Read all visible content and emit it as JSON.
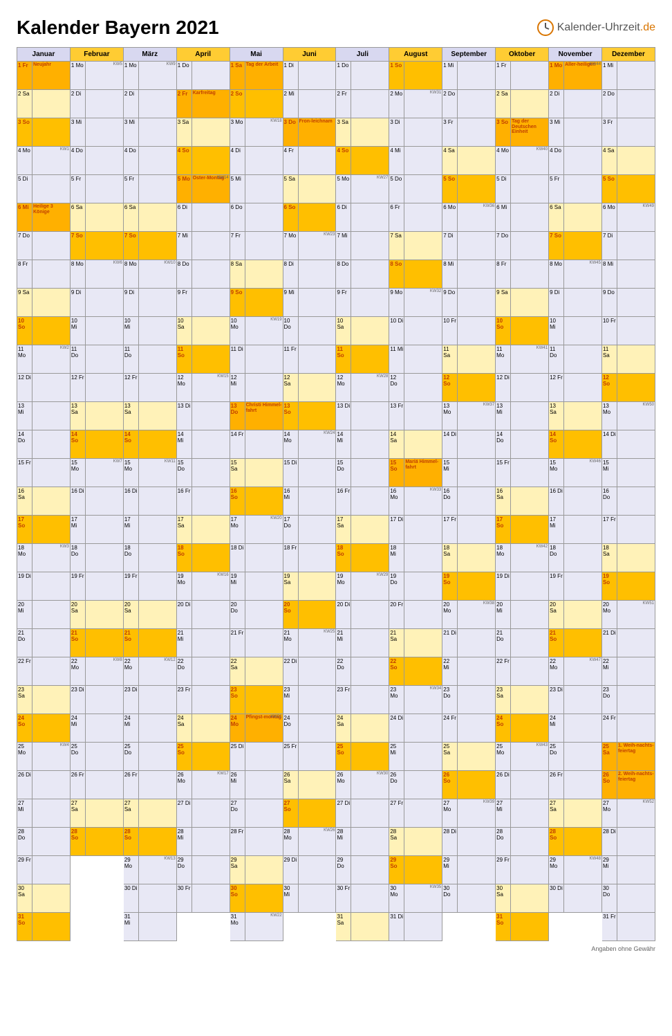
{
  "title": "Kalender Bayern 2021",
  "logo": {
    "text1": "Kalender-Uhrzeit",
    "text2": ".de"
  },
  "footer": "Angaben ohne Gewähr",
  "colors": {
    "header_even": "#d8d8f0",
    "header_odd": "#ffcc33",
    "weekday": "#e8e8f5",
    "saturday": "#fff2b8",
    "sunday": "#ffbf00",
    "holiday": "#ffb000",
    "holiday_text": "#c04000",
    "day_text_holiday": "#c04000",
    "border": "#999999"
  },
  "weekdays": [
    "Mo",
    "Di",
    "Mi",
    "Do",
    "Fr",
    "Sa",
    "So"
  ],
  "months": [
    {
      "name": "Januar",
      "days": 31,
      "start": 4,
      "holidays": {
        "1": "Neujahr",
        "6": "Heilige 3 Könige"
      }
    },
    {
      "name": "Februar",
      "days": 28,
      "start": 0,
      "holidays": {}
    },
    {
      "name": "März",
      "days": 31,
      "start": 0,
      "holidays": {}
    },
    {
      "name": "April",
      "days": 30,
      "start": 3,
      "holidays": {
        "2": "Karfreitag",
        "5": "Oster-Montag"
      }
    },
    {
      "name": "Mai",
      "days": 31,
      "start": 5,
      "holidays": {
        "1": "Tag der Arbeit",
        "13": "Christi Himmel-fahrt",
        "24": "Pfingst-montag"
      }
    },
    {
      "name": "Juni",
      "days": 30,
      "start": 1,
      "holidays": {
        "3": "Fron-leichnam"
      }
    },
    {
      "name": "Juli",
      "days": 31,
      "start": 3,
      "holidays": {}
    },
    {
      "name": "August",
      "days": 31,
      "start": 6,
      "holidays": {
        "15": "Mariä Himmel-fahrt"
      }
    },
    {
      "name": "September",
      "days": 30,
      "start": 2,
      "holidays": {}
    },
    {
      "name": "Oktober",
      "days": 31,
      "start": 4,
      "holidays": {
        "3": "Tag der Deutschen Einheit"
      }
    },
    {
      "name": "November",
      "days": 30,
      "start": 0,
      "holidays": {
        "1": "Aller-heiligen"
      }
    },
    {
      "name": "Dezember",
      "days": 31,
      "start": 2,
      "holidays": {
        "25": "1. Weih-nachts-feiertag",
        "26": "2. Weih-nachts-feiertag"
      }
    }
  ],
  "kw": {
    "0": {
      "4": "KW1",
      "11": "KW2",
      "18": "KW3",
      "25": "KW4"
    },
    "1": {
      "1": "KW5",
      "8": "KW6",
      "15": "KW7",
      "22": "KW8"
    },
    "2": {
      "1": "KW9",
      "8": "KW10",
      "15": "KW11",
      "22": "KW12",
      "29": "KW13"
    },
    "3": {
      "5": "KW14",
      "12": "KW15",
      "19": "KW16",
      "26": "KW17"
    },
    "4": {
      "3": "KW18",
      "10": "KW19",
      "17": "KW20",
      "24": "KW21",
      "31": "KW22"
    },
    "5": {
      "7": "KW23",
      "14": "KW24",
      "21": "KW25",
      "28": "KW26"
    },
    "6": {
      "5": "KW27",
      "12": "KW28",
      "19": "KW29",
      "26": "KW30"
    },
    "7": {
      "2": "KW31",
      "9": "KW32",
      "16": "KW33",
      "23": "KW34",
      "30": "KW35"
    },
    "8": {
      "6": "KW36",
      "13": "KW37",
      "20": "KW38",
      "27": "KW39"
    },
    "9": {
      "4": "KW40",
      "11": "KW41",
      "18": "KW42",
      "25": "KW43"
    },
    "10": {
      "1": "KW44",
      "8": "KW45",
      "15": "KW46",
      "22": "KW47",
      "29": "KW48"
    },
    "11": {
      "6": "KW49",
      "13": "KW50",
      "20": "KW51",
      "27": "KW52"
    }
  }
}
